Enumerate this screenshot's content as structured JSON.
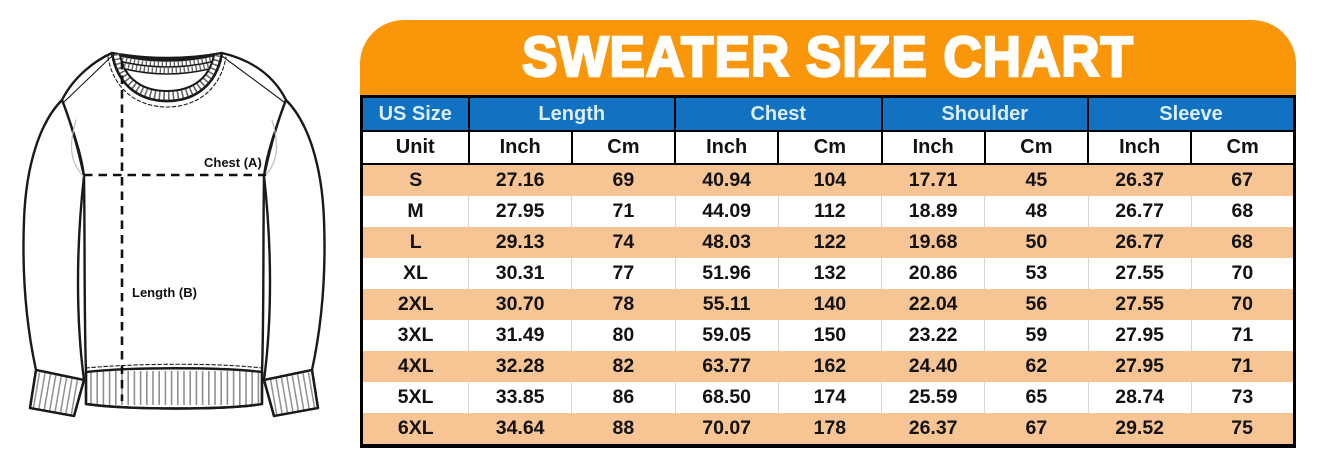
{
  "title": "SWEATER SIZE CHART",
  "diagram": {
    "chest_label": "Chest (A)",
    "length_label": "Length (B)"
  },
  "colors": {
    "banner_orange": "#F9960A",
    "header_blue": "#1272C2",
    "row_orange": "#F7C493",
    "header_text_light": "#DCEEFB",
    "text_dark": "#121212"
  },
  "table": {
    "group_headers": [
      {
        "label": "US Size",
        "span": 1
      },
      {
        "label": "Length",
        "span": 2
      },
      {
        "label": "Chest",
        "span": 2
      },
      {
        "label": "Shoulder",
        "span": 2
      },
      {
        "label": "Sleeve",
        "span": 2
      }
    ],
    "unit_row": [
      "Unit",
      "Inch",
      "Cm",
      "Inch",
      "Cm",
      "Inch",
      "Cm",
      "Inch",
      "Cm"
    ],
    "rows": [
      {
        "size": "S",
        "values": [
          "27.16",
          "69",
          "40.94",
          "104",
          "17.71",
          "45",
          "26.37",
          "67"
        ]
      },
      {
        "size": "M",
        "values": [
          "27.95",
          "71",
          "44.09",
          "112",
          "18.89",
          "48",
          "26.77",
          "68"
        ]
      },
      {
        "size": "L",
        "values": [
          "29.13",
          "74",
          "48.03",
          "122",
          "19.68",
          "50",
          "26.77",
          "68"
        ]
      },
      {
        "size": "XL",
        "values": [
          "30.31",
          "77",
          "51.96",
          "132",
          "20.86",
          "53",
          "27.55",
          "70"
        ]
      },
      {
        "size": "2XL",
        "values": [
          "30.70",
          "78",
          "55.11",
          "140",
          "22.04",
          "56",
          "27.55",
          "70"
        ]
      },
      {
        "size": "3XL",
        "values": [
          "31.49",
          "80",
          "59.05",
          "150",
          "23.22",
          "59",
          "27.95",
          "71"
        ]
      },
      {
        "size": "4XL",
        "values": [
          "32.28",
          "82",
          "63.77",
          "162",
          "24.40",
          "62",
          "27.95",
          "71"
        ]
      },
      {
        "size": "5XL",
        "values": [
          "33.85",
          "86",
          "68.50",
          "174",
          "25.59",
          "65",
          "28.74",
          "73"
        ]
      },
      {
        "size": "6XL",
        "values": [
          "34.64",
          "88",
          "70.07",
          "178",
          "26.37",
          "67",
          "29.52",
          "75"
        ]
      }
    ]
  },
  "chart_data": {
    "type": "table",
    "title": "SWEATER SIZE CHART",
    "column_groups": [
      "US Size",
      "Length",
      "Chest",
      "Shoulder",
      "Sleeve"
    ],
    "columns": [
      "US Size",
      "Length Inch",
      "Length Cm",
      "Chest Inch",
      "Chest Cm",
      "Shoulder Inch",
      "Shoulder Cm",
      "Sleeve Inch",
      "Sleeve Cm"
    ],
    "rows": [
      [
        "S",
        27.16,
        69,
        40.94,
        104,
        17.71,
        45,
        26.37,
        67
      ],
      [
        "M",
        27.95,
        71,
        44.09,
        112,
        18.89,
        48,
        26.77,
        68
      ],
      [
        "L",
        29.13,
        74,
        48.03,
        122,
        19.68,
        50,
        26.77,
        68
      ],
      [
        "XL",
        30.31,
        77,
        51.96,
        132,
        20.86,
        53,
        27.55,
        70
      ],
      [
        "2XL",
        30.7,
        78,
        55.11,
        140,
        22.04,
        56,
        27.55,
        70
      ],
      [
        "3XL",
        31.49,
        80,
        59.05,
        150,
        23.22,
        59,
        27.95,
        71
      ],
      [
        "4XL",
        32.28,
        82,
        63.77,
        162,
        24.4,
        62,
        27.95,
        71
      ],
      [
        "5XL",
        33.85,
        86,
        68.5,
        174,
        25.59,
        65,
        28.74,
        73
      ],
      [
        "6XL",
        34.64,
        88,
        70.07,
        178,
        26.37,
        67,
        29.52,
        75
      ]
    ]
  }
}
